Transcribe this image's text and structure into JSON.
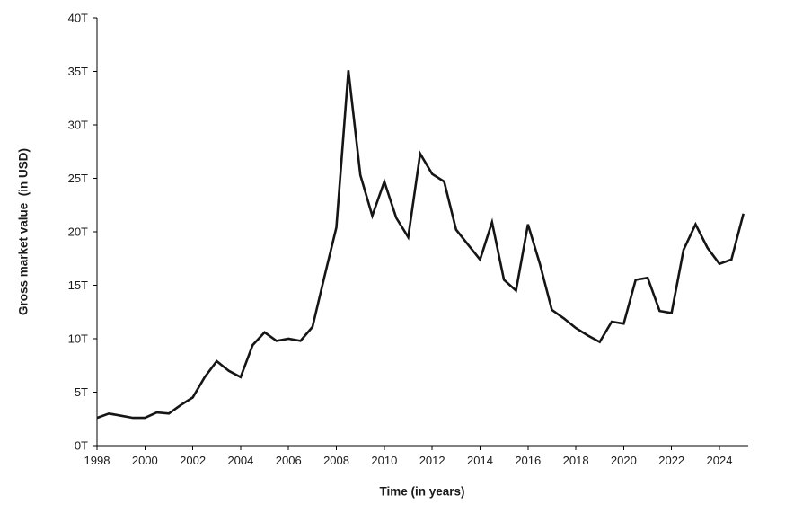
{
  "page": {
    "background": "#ffffff"
  },
  "chart_data": {
    "type": "line",
    "title": "",
    "xlabel": "Time (in years)",
    "ylabel": "Gross market value  (in USD)",
    "series": [
      {
        "name": "Gross market value (USD trillions)",
        "x": [
          1998,
          1998.5,
          1999,
          1999.5,
          2000,
          2000.5,
          2001,
          2001.5,
          2002,
          2002.5,
          2003,
          2003.5,
          2004,
          2004.5,
          2005,
          2005.5,
          2006,
          2006.5,
          2007,
          2007.5,
          2008,
          2008.5,
          2009,
          2009.5,
          2010,
          2010.5,
          2011,
          2011.5,
          2012,
          2012.5,
          2013,
          2013.5,
          2014,
          2014.5,
          2015,
          2015.5,
          2016,
          2016.5,
          2017,
          2017.5,
          2018,
          2018.5,
          2019,
          2019.5,
          2020,
          2020.5,
          2021,
          2021.5,
          2022,
          2022.5,
          2023,
          2023.5,
          2024,
          2024.5,
          2025
        ],
        "values": [
          2.6,
          3.0,
          2.8,
          2.6,
          2.6,
          3.1,
          3.0,
          3.8,
          4.5,
          6.4,
          7.9,
          7.0,
          6.4,
          9.4,
          10.6,
          9.8,
          10.0,
          9.8,
          11.1,
          15.8,
          20.4,
          35.1,
          25.3,
          21.5,
          24.7,
          21.3,
          19.5,
          27.3,
          25.4,
          24.7,
          20.2,
          18.8,
          17.4,
          20.9,
          15.5,
          14.5,
          20.7,
          17.0,
          12.7,
          11.9,
          11.0,
          10.3,
          9.7,
          11.6,
          11.4,
          15.5,
          15.7,
          12.6,
          12.4,
          18.3,
          20.7,
          18.5,
          17.0,
          17.4,
          21.7
        ]
      }
    ],
    "xlim": [
      1998,
      2025.2
    ],
    "ylim": [
      0,
      40
    ],
    "x_ticks": [
      1998,
      2000,
      2002,
      2004,
      2006,
      2008,
      2010,
      2012,
      2014,
      2016,
      2018,
      2020,
      2022,
      2024
    ],
    "x_tick_labels": [
      "1998",
      "2000",
      "2002",
      "2004",
      "2006",
      "2008",
      "2010",
      "2012",
      "2014",
      "2016",
      "2018",
      "2020",
      "2022",
      "2024"
    ],
    "y_ticks": [
      0,
      5,
      10,
      15,
      20,
      25,
      30,
      35,
      40
    ],
    "y_tick_labels": [
      "0T",
      "5T",
      "10T",
      "15T",
      "20T",
      "25T",
      "30T",
      "35T",
      "40T"
    ],
    "grid": false,
    "legend_position": "none",
    "line_color": "#151515",
    "line_width": 2.6,
    "axis_color": "#000000"
  }
}
